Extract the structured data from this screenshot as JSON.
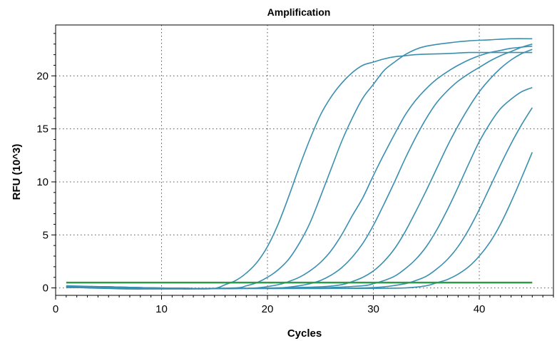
{
  "chart_data": {
    "type": "line",
    "title": "Amplification",
    "xlabel": "Cycles",
    "ylabel": "RFU (10^3)",
    "xlim": [
      0,
      47
    ],
    "ylim": [
      -0.7,
      24.8
    ],
    "xticks": [
      0,
      10,
      20,
      30,
      40
    ],
    "yticks": [
      0,
      5,
      10,
      15,
      20
    ],
    "grid": true,
    "colors": {
      "amplification": "#3a8fb0",
      "threshold": "#2e9b4a"
    },
    "series": [
      {
        "x": [
          1,
          3,
          5,
          7,
          9,
          11,
          13,
          15,
          16,
          17,
          18,
          19,
          20,
          21,
          22,
          23,
          24,
          25,
          26,
          27,
          28,
          29,
          30,
          31,
          32,
          33,
          34,
          35,
          37,
          39,
          41,
          43,
          45
        ],
        "y": [
          0.1,
          0,
          -0.05,
          -0.1,
          -0.1,
          -0.1,
          -0.1,
          -0.05,
          0.3,
          0.7,
          1.4,
          2.4,
          3.9,
          6.0,
          8.6,
          11.4,
          14.0,
          16.3,
          18.0,
          19.3,
          20.3,
          21.0,
          21.3,
          21.6,
          21.8,
          21.9,
          22.0,
          22.05,
          22.1,
          22.2,
          22.2,
          22.2,
          22.2
        ]
      },
      {
        "x": [
          1,
          5,
          9,
          13,
          17,
          18,
          19,
          20,
          21,
          22,
          23,
          24,
          25,
          26,
          27,
          28,
          29,
          30,
          31,
          32,
          33,
          34,
          35,
          37,
          39,
          41,
          43,
          45
        ],
        "y": [
          0.2,
          0.1,
          0,
          -0.05,
          0,
          0.2,
          0.5,
          1.0,
          1.7,
          2.7,
          4.2,
          6.1,
          8.6,
          11.2,
          13.8,
          16.0,
          17.9,
          19.2,
          20.5,
          21.3,
          22.0,
          22.5,
          22.8,
          23.1,
          23.3,
          23.4,
          23.5,
          23.5
        ]
      },
      {
        "x": [
          1,
          5,
          9,
          13,
          17,
          19,
          21,
          22,
          23,
          24,
          25,
          26,
          27,
          28,
          29,
          30,
          31,
          32,
          33,
          34,
          35,
          36,
          37,
          38,
          39,
          40,
          41,
          42,
          43,
          45
        ],
        "y": [
          0.15,
          0.1,
          0,
          -0.05,
          -0.05,
          0,
          0.3,
          0.6,
          1.0,
          1.6,
          2.4,
          3.5,
          5.0,
          6.8,
          8.5,
          10.6,
          12.6,
          14.5,
          16.3,
          17.7,
          18.8,
          19.7,
          20.4,
          21.0,
          21.5,
          21.9,
          22.2,
          22.4,
          22.6,
          22.8
        ]
      },
      {
        "x": [
          1,
          5,
          9,
          13,
          17,
          21,
          23,
          24,
          25,
          26,
          27,
          28,
          29,
          30,
          31,
          32,
          33,
          34,
          35,
          36,
          37,
          38,
          39,
          40,
          41,
          42,
          43,
          44,
          45
        ],
        "y": [
          0.15,
          0.1,
          0,
          -0.05,
          -0.05,
          0,
          0.2,
          0.4,
          0.7,
          1.2,
          1.9,
          2.9,
          4.2,
          5.9,
          7.9,
          10.0,
          12.2,
          14.2,
          16.0,
          17.5,
          18.6,
          19.5,
          20.2,
          20.8,
          21.4,
          21.9,
          22.3,
          22.7,
          23.0
        ]
      },
      {
        "x": [
          1,
          5,
          9,
          13,
          17,
          21,
          25,
          27,
          28,
          29,
          30,
          31,
          32,
          33,
          34,
          35,
          36,
          37,
          38,
          39,
          40,
          41,
          42,
          43,
          44,
          45
        ],
        "y": [
          0.15,
          0.1,
          0,
          -0.05,
          -0.05,
          0,
          0.1,
          0.3,
          0.6,
          1.0,
          1.6,
          2.5,
          3.7,
          5.3,
          7.2,
          9.2,
          11.3,
          13.4,
          15.3,
          17.0,
          18.5,
          19.7,
          20.7,
          21.5,
          22.1,
          22.5
        ]
      },
      {
        "x": [
          1,
          5,
          9,
          13,
          17,
          21,
          25,
          29,
          30,
          31,
          32,
          33,
          34,
          35,
          36,
          37,
          38,
          39,
          40,
          41,
          42,
          43,
          44,
          45
        ],
        "y": [
          0.1,
          0.05,
          0,
          -0.05,
          -0.05,
          -0.05,
          0,
          0.2,
          0.4,
          0.7,
          1.1,
          1.8,
          2.7,
          3.9,
          5.5,
          7.4,
          9.5,
          11.7,
          13.8,
          15.5,
          16.9,
          17.8,
          18.5,
          18.9
        ]
      },
      {
        "x": [
          1,
          5,
          9,
          13,
          17,
          21,
          25,
          29,
          31,
          33,
          34,
          35,
          36,
          37,
          38,
          39,
          40,
          41,
          42,
          43,
          44,
          45
        ],
        "y": [
          0.05,
          0,
          -0.05,
          -0.05,
          -0.05,
          -0.05,
          -0.05,
          0,
          0.1,
          0.4,
          0.7,
          1.1,
          1.8,
          2.7,
          3.9,
          5.5,
          7.4,
          9.5,
          11.6,
          13.6,
          15.4,
          17.0
        ]
      },
      {
        "x": [
          1,
          5,
          9,
          13,
          17,
          21,
          25,
          29,
          33,
          35,
          36,
          37,
          38,
          39,
          40,
          41,
          42,
          43,
          44,
          45
        ],
        "y": [
          0.05,
          0,
          -0.05,
          -0.05,
          -0.05,
          -0.05,
          -0.05,
          -0.05,
          0,
          0.2,
          0.5,
          0.8,
          1.3,
          2.0,
          3.0,
          4.3,
          6.0,
          8.1,
          10.4,
          12.8
        ]
      }
    ],
    "threshold": {
      "y": 0.5,
      "x": [
        1,
        45
      ]
    }
  }
}
